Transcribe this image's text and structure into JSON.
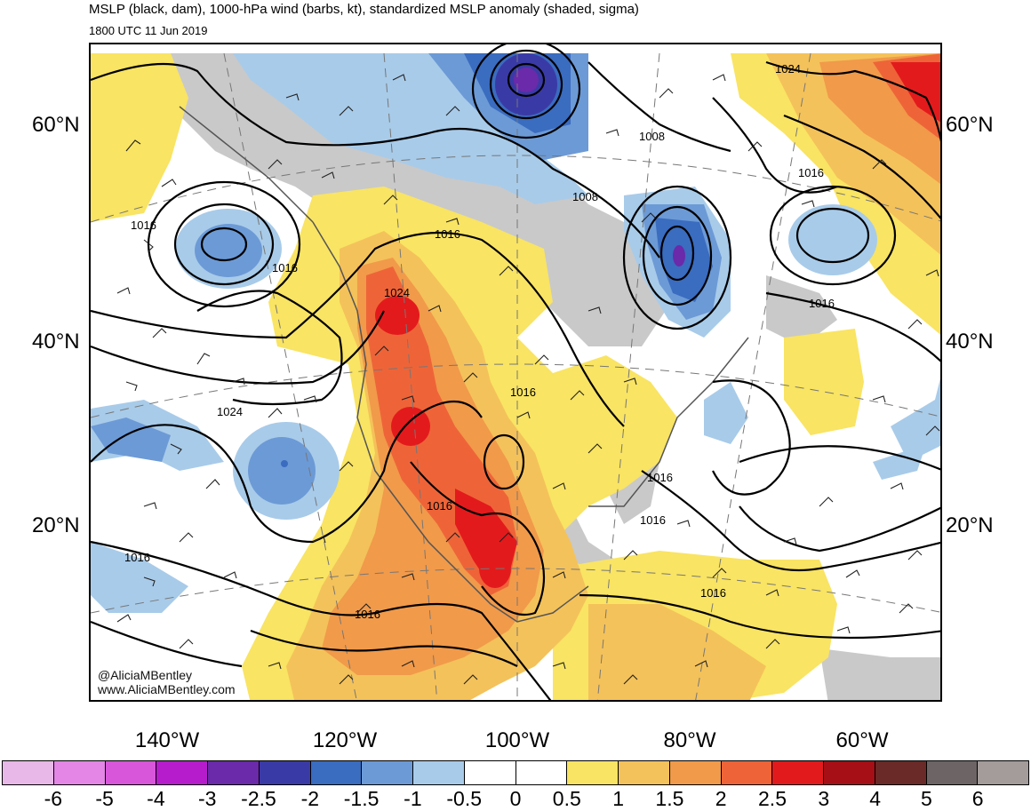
{
  "title": "MSLP (black, dam), 1000-hPa wind (barbs, kt), standardized MSLP anomaly (shaded, sigma)",
  "valid_time": "1800 UTC 11 Jun 2019",
  "lat_labels": {
    "lat60": "60°N",
    "lat40": "40°N",
    "lat20": "20°N"
  },
  "lon_labels": [
    "140°W",
    "120°W",
    "100°W",
    "80°W",
    "60°W"
  ],
  "credit": {
    "handle": "@AliciaMBentley",
    "url": "www.AliciaMBentley.com"
  },
  "contour_labels": {
    "c1024_ne": "1024",
    "c1008_a": "1008",
    "c1008_b": "1008",
    "c1016_greenland": "1016",
    "c1016_pacific": "1016",
    "c1016_aleutian": "1016",
    "c1016_canada": "1016",
    "c1024_nw": "1024",
    "c1016_atlantic": "1016",
    "c1016_plains": "1016",
    "c1024_pac": "1024",
    "c1016_se": "1016",
    "c1016_fl": "1016",
    "c1016_mex": "1016",
    "c1016_carib": "1016",
    "c1016_wpac": "1016",
    "c1016_spac": "1016"
  },
  "colorbar": {
    "colors": [
      "#e8b8e8",
      "#e486e6",
      "#d856d9",
      "#b61ccc",
      "#6a2aaa",
      "#3a3aa6",
      "#3a6cc0",
      "#6c9ad6",
      "#a8cbe9",
      "#ffffff",
      "#ffffff",
      "#f9e463",
      "#f4c25a",
      "#f19a4a",
      "#ee6438",
      "#e31a1c",
      "#a50f15",
      "#6a2a27",
      "#6d6565",
      "#a49b9b"
    ],
    "labels": [
      "-6",
      "-5",
      "-4",
      "-3",
      "-2.5",
      "-2",
      "-1.5",
      "-1",
      "-0.5",
      "0",
      "0.5",
      "1",
      "1.5",
      "2",
      "2.5",
      "3",
      "4",
      "5",
      "6"
    ]
  },
  "map_colors": {
    "land": "#c9c9c9",
    "ocean": "#ffffff"
  }
}
